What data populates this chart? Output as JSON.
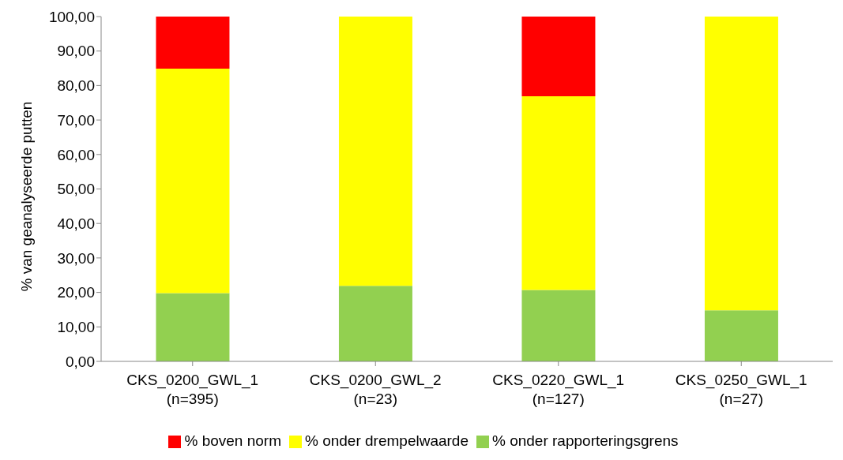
{
  "chart_data": {
    "type": "bar",
    "stacked": true,
    "ylabel": "% van geanalyseerde putten",
    "categories": [
      "CKS_0200_GWL_1\n(n=395)",
      "CKS_0200_GWL_2\n(n=23)",
      "CKS_0220_GWL_1\n(n=127)",
      "CKS_0250_GWL_1\n(n=27)"
    ],
    "series": [
      {
        "name": "% onder rapporteringsgrens",
        "color": "#92d050",
        "values": [
          19.8,
          21.9,
          20.7,
          14.8
        ]
      },
      {
        "name": "% onder drempelwaarde",
        "color": "#ffff00",
        "values": [
          65.1,
          78.1,
          56.2,
          85.2
        ]
      },
      {
        "name": "% boven norm",
        "color": "#ff0000",
        "values": [
          15.1,
          null,
          23.1,
          null
        ]
      }
    ],
    "ylim": [
      0,
      100
    ],
    "yticks": [
      {
        "value": 0,
        "label": "0,00"
      },
      {
        "value": 10,
        "label": "10,00"
      },
      {
        "value": 20,
        "label": "20,00"
      },
      {
        "value": 30,
        "label": "30,00"
      },
      {
        "value": 40,
        "label": "40,00"
      },
      {
        "value": 50,
        "label": "50,00"
      },
      {
        "value": 60,
        "label": "60,00"
      },
      {
        "value": 70,
        "label": "70,00"
      },
      {
        "value": 80,
        "label": "80,00"
      },
      {
        "value": 90,
        "label": "90,00"
      },
      {
        "value": 100,
        "label": "100,00"
      }
    ],
    "grid": false,
    "legend": "bottom"
  }
}
